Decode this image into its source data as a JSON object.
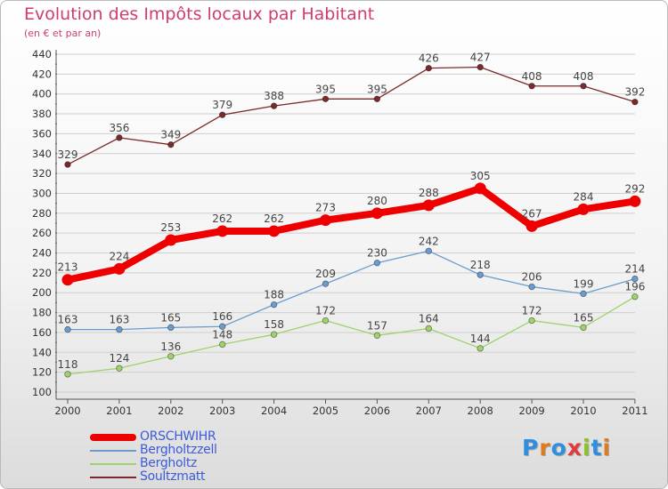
{
  "header": {
    "title": "Evolution des Impôts locaux par Habitant",
    "subtitle": "(en € et par an)"
  },
  "colors": {
    "title": "#ce3c73",
    "axis_text": "#333333",
    "grid": "#cfcfcf"
  },
  "chart_data": {
    "type": "line",
    "x": [
      "2000",
      "2001",
      "2002",
      "2003",
      "2004",
      "2005",
      "2006",
      "2007",
      "2008",
      "2009",
      "2010",
      "2011"
    ],
    "ylim": [
      100,
      440
    ],
    "yticks": [
      100,
      120,
      140,
      160,
      180,
      200,
      220,
      240,
      260,
      280,
      300,
      320,
      340,
      360,
      380,
      400,
      420,
      440
    ],
    "grid": "horizontal",
    "legend_position": "bottom-left",
    "series": [
      {
        "name": "ORSCHWIHR",
        "color": "#ee0000",
        "emphasis": true,
        "values": [
          213,
          224,
          253,
          262,
          262,
          273,
          280,
          288,
          305,
          267,
          284,
          292
        ]
      },
      {
        "name": "Bergholtzzell",
        "color": "#6a9ccf",
        "values": [
          163,
          163,
          165,
          166,
          188,
          209,
          230,
          242,
          218,
          206,
          199,
          214
        ]
      },
      {
        "name": "Bergholtz",
        "color": "#9ed26a",
        "values": [
          118,
          124,
          136,
          148,
          158,
          172,
          157,
          164,
          144,
          172,
          165,
          196
        ]
      },
      {
        "name": "Soultzmatt",
        "color": "#7a2a2a",
        "values": [
          329,
          356,
          349,
          379,
          388,
          395,
          395,
          426,
          427,
          408,
          408,
          392
        ]
      }
    ]
  },
  "legend": [
    {
      "label": "ORSCHWIHR",
      "color": "#ee0000",
      "text_color": "#3c5bd8"
    },
    {
      "label": "Bergholtzzell",
      "color": "#6a9ccf",
      "text_color": "#3c5bd8"
    },
    {
      "label": "Bergholtz",
      "color": "#9ed26a",
      "text_color": "#3c5bd8"
    },
    {
      "label": "Soultzmatt",
      "color": "#7a2a2a",
      "text_color": "#3c5bd8"
    }
  ],
  "logo": {
    "letters": [
      "P",
      "r",
      "o",
      "x",
      "i",
      "t",
      "i"
    ],
    "colors": [
      "#2f8ede",
      "#e07a1e",
      "#2f8ede",
      "#e03c3c",
      "#8fbf2a",
      "#2f8ede",
      "#e07a1e"
    ]
  }
}
